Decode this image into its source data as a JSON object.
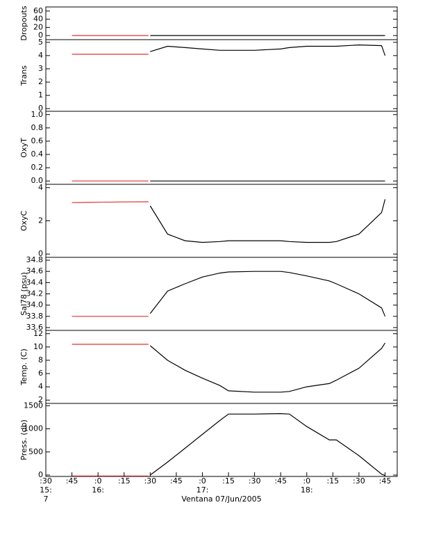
{
  "chart_data": [
    {
      "type": "line",
      "ylabel": "Dropouts",
      "xlim": [
        30,
        232
      ],
      "ylim": [
        -10,
        70
      ],
      "yticks": [
        0,
        20,
        40,
        60
      ],
      "x": [
        45,
        60,
        75,
        89,
        90,
        100,
        110,
        120,
        130,
        135,
        150,
        165,
        170,
        180,
        193,
        197,
        210,
        223,
        225
      ],
      "series": [
        {
          "color": "#e03030",
          "values": [
            0,
            0,
            0,
            0,
            null,
            null,
            null,
            null,
            null,
            null,
            null,
            null,
            null,
            null,
            null,
            null,
            null,
            null,
            null
          ]
        },
        {
          "color": "#000000",
          "values": [
            null,
            null,
            null,
            null,
            0,
            0,
            0,
            0,
            0,
            0,
            0,
            0,
            0,
            0,
            0,
            0,
            0,
            0,
            0
          ]
        }
      ]
    },
    {
      "type": "line",
      "ylabel": "Trans",
      "xlim": [
        30,
        232
      ],
      "ylim": [
        -0.2,
        5.2
      ],
      "yticks": [
        0,
        1,
        2,
        3,
        4,
        5
      ],
      "x": [
        45,
        60,
        75,
        89,
        90,
        100,
        110,
        120,
        130,
        135,
        150,
        165,
        170,
        180,
        193,
        197,
        210,
        223,
        225
      ],
      "series": [
        {
          "color": "#e03030",
          "values": [
            4.1,
            4.1,
            4.1,
            4.1,
            null,
            null,
            null,
            null,
            null,
            null,
            null,
            null,
            null,
            null,
            null,
            null,
            null,
            null,
            null
          ]
        },
        {
          "color": "#000000",
          "values": [
            null,
            null,
            null,
            null,
            4.3,
            4.7,
            4.6,
            4.5,
            4.4,
            4.4,
            4.4,
            4.5,
            4.6,
            4.7,
            4.7,
            4.7,
            4.8,
            4.75,
            4.0
          ]
        }
      ]
    },
    {
      "type": "line",
      "ylabel": "OxyT",
      "xlim": [
        30,
        232
      ],
      "ylim": [
        -0.05,
        1.05
      ],
      "yticks": [
        {
          "value": 0,
          "label": "0.0"
        },
        {
          "value": 0.2,
          "label": "0.2"
        },
        {
          "value": 0.4,
          "label": "0.4"
        },
        {
          "value": 0.6,
          "label": "0.6"
        },
        {
          "value": 0.8,
          "label": "0.8"
        },
        {
          "value": 1,
          "label": "1.0"
        }
      ],
      "x": [
        45,
        60,
        75,
        89,
        90,
        100,
        110,
        120,
        130,
        135,
        150,
        165,
        170,
        180,
        193,
        197,
        210,
        223,
        225
      ],
      "series": [
        {
          "color": "#e03030",
          "values": [
            0,
            0,
            0,
            0,
            null,
            null,
            null,
            null,
            null,
            null,
            null,
            null,
            null,
            null,
            null,
            null,
            null,
            null,
            null
          ]
        },
        {
          "color": "#000000",
          "values": [
            null,
            null,
            null,
            null,
            0,
            0,
            0,
            0,
            0,
            0,
            0,
            0,
            0,
            0,
            0,
            0,
            0,
            0,
            0
          ]
        }
      ]
    },
    {
      "type": "line",
      "ylabel": "OxyC",
      "xlim": [
        30,
        232
      ],
      "ylim": [
        -0.2,
        4.2
      ],
      "yticks": [
        0,
        2,
        4
      ],
      "x": [
        45,
        60,
        75,
        89,
        90,
        100,
        110,
        120,
        130,
        135,
        150,
        165,
        170,
        180,
        193,
        197,
        210,
        223,
        225
      ],
      "series": [
        {
          "color": "#e03030",
          "values": [
            3.1,
            3.12,
            3.14,
            3.15,
            null,
            null,
            null,
            null,
            null,
            null,
            null,
            null,
            null,
            null,
            null,
            null,
            null,
            null,
            null
          ]
        },
        {
          "color": "#000000",
          "values": [
            null,
            null,
            null,
            null,
            2.9,
            1.2,
            0.8,
            0.7,
            0.75,
            0.8,
            0.8,
            0.8,
            0.75,
            0.7,
            0.7,
            0.75,
            1.2,
            2.5,
            3.3
          ]
        }
      ]
    },
    {
      "type": "line",
      "ylabel": "Sal78 (psu)",
      "xlim": [
        30,
        232
      ],
      "ylim": [
        33.55,
        34.85
      ],
      "yticks": [
        33.6,
        33.8,
        {
          "value": 34,
          "label": "34.0"
        },
        34.2,
        34.4,
        34.6,
        34.8
      ],
      "x": [
        45,
        60,
        75,
        89,
        90,
        100,
        110,
        120,
        130,
        135,
        150,
        165,
        170,
        180,
        193,
        197,
        210,
        223,
        225
      ],
      "series": [
        {
          "color": "#e03030",
          "values": [
            33.8,
            33.8,
            33.8,
            33.8,
            null,
            null,
            null,
            null,
            null,
            null,
            null,
            null,
            null,
            null,
            null,
            null,
            null,
            null,
            null
          ]
        },
        {
          "color": "#000000",
          "values": [
            null,
            null,
            null,
            null,
            33.85,
            34.25,
            34.38,
            34.5,
            34.57,
            34.59,
            34.6,
            34.6,
            34.58,
            34.52,
            34.43,
            34.38,
            34.2,
            33.95,
            33.8
          ]
        }
      ]
    },
    {
      "type": "line",
      "ylabel": "Temp. (C)",
      "xlim": [
        30,
        232
      ],
      "ylim": [
        1.5,
        12.5
      ],
      "yticks": [
        2,
        4,
        6,
        8,
        10,
        12
      ],
      "x": [
        45,
        60,
        75,
        89,
        90,
        100,
        110,
        120,
        130,
        135,
        150,
        165,
        170,
        180,
        193,
        197,
        210,
        223,
        225
      ],
      "series": [
        {
          "color": "#e03030",
          "values": [
            10.4,
            10.4,
            10.4,
            10.4,
            null,
            null,
            null,
            null,
            null,
            null,
            null,
            null,
            null,
            null,
            null,
            null,
            null,
            null,
            null
          ]
        },
        {
          "color": "#000000",
          "values": [
            null,
            null,
            null,
            null,
            10.2,
            8,
            6.5,
            5.3,
            4.2,
            3.4,
            3.2,
            3.2,
            3.3,
            4,
            4.5,
            5,
            6.8,
            9.8,
            10.6
          ]
        }
      ]
    },
    {
      "type": "line",
      "ylabel": "Press. (db)",
      "xlabel": "Ventana 07/Jun/2005",
      "xlim": [
        30,
        232
      ],
      "ylim": [
        -30,
        1550
      ],
      "yticks": [
        0,
        500,
        1000,
        1500
      ],
      "xticks": [
        {
          "value": 30,
          "label": ":30"
        },
        {
          "value": 45,
          "label": ":45"
        },
        {
          "value": 60,
          "label": ":0"
        },
        {
          "value": 75,
          "label": ":15"
        },
        {
          "value": 90,
          "label": ":30"
        },
        {
          "value": 105,
          "label": ":45"
        },
        {
          "value": 120,
          "label": ":0"
        },
        {
          "value": 135,
          "label": ":15"
        },
        {
          "value": 150,
          "label": ":30"
        },
        {
          "value": 165,
          "label": ":45"
        },
        {
          "value": 180,
          "label": ":0"
        },
        {
          "value": 195,
          "label": ":15"
        },
        {
          "value": 210,
          "label": ":30"
        },
        {
          "value": 225,
          "label": ":45"
        }
      ],
      "x_hour_labels": [
        {
          "value": 30,
          "label": "15:"
        },
        {
          "value": 60,
          "label": "16:"
        },
        {
          "value": 120,
          "label": "17:"
        },
        {
          "value": 180,
          "label": "18:"
        }
      ],
      "x_day_label": {
        "value": 30,
        "label": "7"
      },
      "x": [
        45,
        60,
        75,
        89,
        90,
        100,
        110,
        120,
        130,
        135,
        150,
        165,
        170,
        180,
        193,
        197,
        210,
        223,
        225
      ],
      "series": [
        {
          "color": "#e03030",
          "values": [
            -20,
            -20,
            -20,
            -20,
            null,
            null,
            null,
            null,
            null,
            null,
            null,
            null,
            null,
            null,
            null,
            null,
            null,
            null,
            null
          ]
        },
        {
          "color": "#000000",
          "values": [
            null,
            null,
            null,
            null,
            0,
            280,
            580,
            880,
            1180,
            1320,
            1320,
            1330,
            1320,
            1050,
            760,
            760,
            420,
            20,
            -10
          ]
        }
      ]
    }
  ]
}
